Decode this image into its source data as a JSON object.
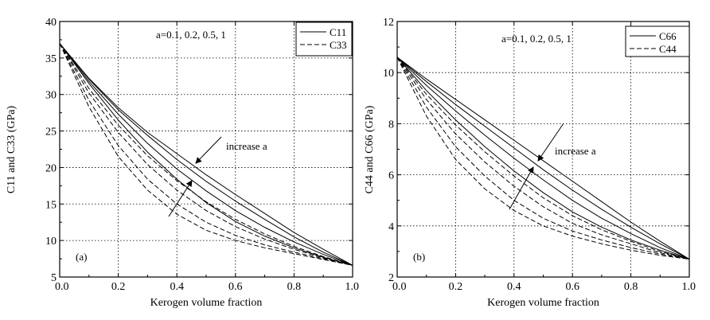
{
  "chart_data": [
    {
      "type": "line",
      "panel_label": "(a)",
      "xlabel": "Kerogen volume fraction",
      "ylabel": "C11 and C33 (GPa)",
      "xlim": [
        0.0,
        1.0
      ],
      "ylim": [
        5,
        40
      ],
      "x_ticks": [
        "0.0",
        "0.2",
        "0.4",
        "0.6",
        "0.8",
        "1.0"
      ],
      "y_ticks": [
        "5",
        "10",
        "15",
        "20",
        "25",
        "30",
        "35",
        "40"
      ],
      "grid": "dotted",
      "annotation_params": "a=0.1, 0.2, 0.5, 1",
      "annotation_trend": "increase a",
      "legend": {
        "position": "top-right",
        "entries": [
          {
            "label": "C11",
            "style": "solid"
          },
          {
            "label": "C33",
            "style": "dashed"
          }
        ]
      },
      "x": [
        0.0,
        0.1,
        0.2,
        0.3,
        0.4,
        0.5,
        0.6,
        0.7,
        0.8,
        0.9,
        1.0
      ],
      "series": [
        {
          "group": "C11",
          "a": 0.1,
          "style": "solid",
          "values": [
            37.0,
            32.2,
            28.2,
            24.8,
            21.9,
            19.0,
            16.3,
            13.7,
            11.1,
            8.8,
            6.6
          ]
        },
        {
          "group": "C11",
          "a": 0.2,
          "style": "solid",
          "values": [
            37.0,
            32.1,
            27.9,
            24.4,
            21.1,
            18.1,
            15.4,
            12.9,
            10.5,
            8.4,
            6.6
          ]
        },
        {
          "group": "C11",
          "a": 0.5,
          "style": "solid",
          "values": [
            37.0,
            31.8,
            27.3,
            23.3,
            19.8,
            16.8,
            14.1,
            11.8,
            9.8,
            8.1,
            6.6
          ]
        },
        {
          "group": "C11",
          "a": 1,
          "style": "solid",
          "values": [
            37.0,
            31.5,
            26.5,
            22.1,
            18.4,
            15.2,
            12.6,
            10.6,
            9.0,
            7.7,
            6.6
          ]
        },
        {
          "group": "C33",
          "a": 0.1,
          "style": "dashed",
          "values": [
            37.0,
            30.8,
            25.8,
            21.6,
            18.2,
            15.3,
            12.9,
            10.9,
            9.2,
            7.8,
            6.6
          ]
        },
        {
          "group": "C33",
          "a": 0.2,
          "style": "dashed",
          "values": [
            37.0,
            30.2,
            24.8,
            20.4,
            16.9,
            14.1,
            11.9,
            10.2,
            8.8,
            7.6,
            6.6
          ]
        },
        {
          "group": "C33",
          "a": 0.5,
          "style": "dashed",
          "values": [
            37.0,
            29.2,
            23.0,
            18.4,
            15.0,
            12.5,
            10.7,
            9.4,
            8.4,
            7.5,
            6.6
          ]
        },
        {
          "group": "C33",
          "a": 1,
          "style": "dashed",
          "values": [
            37.0,
            28.3,
            21.5,
            16.9,
            13.6,
            11.4,
            10.0,
            9.0,
            8.2,
            7.4,
            6.6
          ]
        }
      ]
    },
    {
      "type": "line",
      "panel_label": "(b)",
      "xlabel": "Kerogen volume fraction",
      "ylabel": "C44 and C66 (GPa)",
      "xlim": [
        0.0,
        1.0
      ],
      "ylim": [
        2,
        12
      ],
      "x_ticks": [
        "0.0",
        "0.2",
        "0.4",
        "0.6",
        "0.8",
        "1.0"
      ],
      "y_ticks": [
        "2",
        "4",
        "6",
        "8",
        "10",
        "12"
      ],
      "grid": "dotted",
      "annotation_params": "a=0.1, 0.2, 0.5, 1",
      "annotation_trend": "increase a",
      "legend": {
        "position": "top-right",
        "entries": [
          {
            "label": "C66",
            "style": "solid"
          },
          {
            "label": "C44",
            "style": "dashed"
          }
        ]
      },
      "x": [
        0.0,
        0.1,
        0.2,
        0.3,
        0.4,
        0.5,
        0.6,
        0.7,
        0.8,
        0.9,
        1.0
      ],
      "series": [
        {
          "group": "C66",
          "a": 0.1,
          "style": "solid",
          "values": [
            10.6,
            9.75,
            8.95,
            8.15,
            7.35,
            6.55,
            5.75,
            4.95,
            4.15,
            3.4,
            2.7
          ]
        },
        {
          "group": "C66",
          "a": 0.2,
          "style": "solid",
          "values": [
            10.6,
            9.65,
            8.75,
            7.9,
            7.05,
            6.2,
            5.4,
            4.65,
            3.95,
            3.3,
            2.7
          ]
        },
        {
          "group": "C66",
          "a": 0.5,
          "style": "solid",
          "values": [
            10.6,
            9.5,
            8.5,
            7.55,
            6.65,
            5.8,
            5.0,
            4.3,
            3.7,
            3.15,
            2.7
          ]
        },
        {
          "group": "C66",
          "a": 1,
          "style": "solid",
          "values": [
            10.6,
            9.3,
            8.15,
            7.1,
            6.15,
            5.3,
            4.55,
            3.95,
            3.45,
            3.05,
            2.7
          ]
        },
        {
          "group": "C44",
          "a": 0.1,
          "style": "dashed",
          "values": [
            10.6,
            9.15,
            7.95,
            6.9,
            5.95,
            5.1,
            4.4,
            3.85,
            3.4,
            3.0,
            2.7
          ]
        },
        {
          "group": "C44",
          "a": 0.2,
          "style": "dashed",
          "values": [
            10.6,
            8.95,
            7.6,
            6.5,
            5.55,
            4.75,
            4.1,
            3.65,
            3.3,
            2.95,
            2.7
          ]
        },
        {
          "group": "C44",
          "a": 0.5,
          "style": "dashed",
          "values": [
            10.6,
            8.65,
            7.1,
            5.95,
            5.0,
            4.3,
            3.8,
            3.45,
            3.15,
            2.9,
            2.7
          ]
        },
        {
          "group": "C44",
          "a": 1,
          "style": "dashed",
          "values": [
            10.6,
            8.3,
            6.6,
            5.45,
            4.6,
            4.0,
            3.6,
            3.3,
            3.05,
            2.85,
            2.7
          ]
        }
      ]
    }
  ]
}
